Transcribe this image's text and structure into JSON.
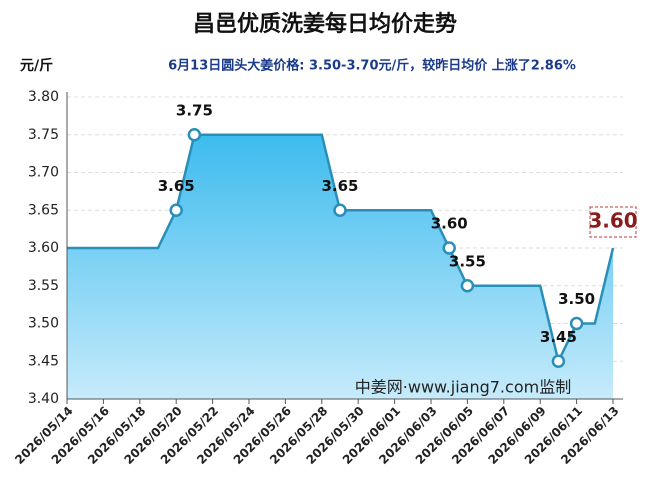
{
  "chart_data": {
    "type": "line",
    "title": "昌邑优质洗姜每日均价走势",
    "subtitle": "6月13日圆头大姜价格: 3.50-3.70元/斤，较昨日均价 上涨了2.86%",
    "y_label": "元/斤",
    "watermark": "中姜网·www.jiang7.com监制",
    "categories": [
      "2026/05/14",
      null,
      "2026/05/16",
      null,
      "2026/05/18",
      null,
      "2026/05/20",
      null,
      "2026/05/22",
      null,
      "2026/05/24",
      null,
      "2026/05/26",
      null,
      "2026/05/28",
      null,
      "2026/05/30",
      null,
      "2026/06/01",
      null,
      "2026/06/03",
      null,
      "2026/06/05",
      null,
      "2026/06/07",
      null,
      "2026/06/09",
      null,
      "2026/06/11",
      null,
      "2026/06/13"
    ],
    "values": [
      3.6,
      3.6,
      3.6,
      3.6,
      3.6,
      3.6,
      3.65,
      3.75,
      3.75,
      3.75,
      3.75,
      3.75,
      3.75,
      3.75,
      3.75,
      3.65,
      3.65,
      3.65,
      3.65,
      3.65,
      3.65,
      3.6,
      3.55,
      3.55,
      3.55,
      3.55,
      3.55,
      3.45,
      3.5,
      3.5,
      3.6
    ],
    "value_labels": [
      null,
      null,
      null,
      null,
      null,
      null,
      "3.65",
      "3.75",
      null,
      null,
      null,
      null,
      null,
      null,
      null,
      "3.65",
      null,
      null,
      null,
      null,
      null,
      "3.60",
      "3.55",
      null,
      null,
      null,
      null,
      "3.45",
      "3.50",
      null,
      "3.60"
    ],
    "color": "#2a8fb8",
    "ylim": [
      3.4,
      3.8
    ],
    "yticks": [
      {
        "value": 3.4,
        "label": "3.40"
      },
      {
        "value": 3.45,
        "label": "3.45"
      },
      {
        "value": 3.5,
        "label": "3.50"
      },
      {
        "value": 3.55,
        "label": "3.55"
      },
      {
        "value": 3.6,
        "label": "3.60"
      },
      {
        "value": 3.65,
        "label": "3.65"
      },
      {
        "value": 3.7,
        "label": "3.70"
      },
      {
        "value": 3.75,
        "label": "3.75"
      },
      {
        "value": 3.8,
        "label": "3.80"
      }
    ],
    "grid": true
  }
}
